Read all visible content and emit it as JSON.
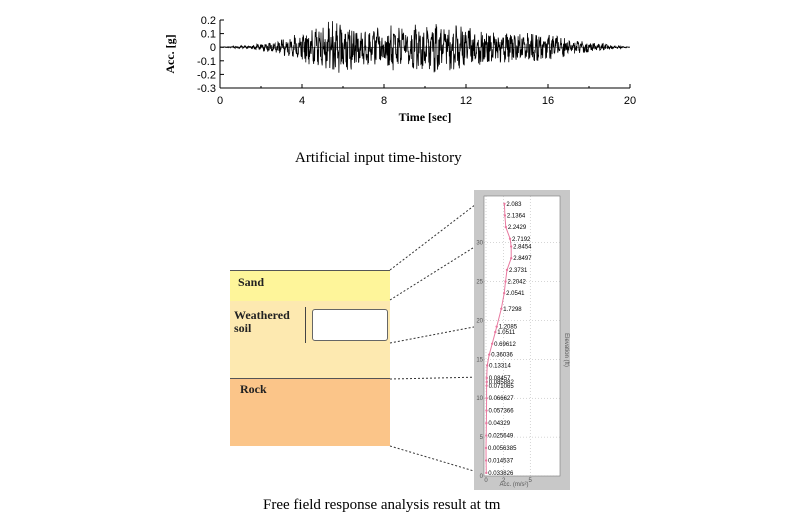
{
  "captions": {
    "top": "Artificial input time-history",
    "bottom": "Free field response analysis result at tm"
  },
  "chart_data": {
    "type": "line",
    "xlabel": "Time [sec]",
    "ylabel": "Acc. [g]",
    "xlim": [
      0,
      20
    ],
    "ylim": [
      -0.3,
      0.2
    ],
    "xticks": [
      "0",
      "4",
      "8",
      "12",
      "16",
      "20"
    ],
    "yticks": [
      "0.2",
      "0.1",
      "0",
      "-0.1",
      "-0.2",
      "-0.3"
    ],
    "series": [
      {
        "values": [
          {
            "t": 0.0,
            "a": 0.0
          },
          {
            "t": 1.0,
            "a": 0.01
          },
          {
            "t": 1.5,
            "a": -0.01
          },
          {
            "t": 2.0,
            "a": 0.03
          },
          {
            "t": 2.5,
            "a": -0.03
          },
          {
            "t": 3.0,
            "a": 0.06
          },
          {
            "t": 3.5,
            "a": -0.08
          },
          {
            "t": 4.0,
            "a": 0.1
          },
          {
            "t": 4.5,
            "a": -0.12
          },
          {
            "t": 5.0,
            "a": 0.15
          },
          {
            "t": 5.5,
            "a": -0.2
          },
          {
            "t": 6.0,
            "a": 0.16
          },
          {
            "t": 6.5,
            "a": -0.15
          },
          {
            "t": 7.0,
            "a": 0.12
          },
          {
            "t": 7.5,
            "a": -0.14
          },
          {
            "t": 8.0,
            "a": 0.14
          },
          {
            "t": 8.5,
            "a": -0.16
          },
          {
            "t": 9.0,
            "a": 0.13
          },
          {
            "t": 9.5,
            "a": -0.18
          },
          {
            "t": 10.0,
            "a": 0.15
          },
          {
            "t": 10.5,
            "a": -0.19
          },
          {
            "t": 11.0,
            "a": 0.17
          },
          {
            "t": 11.5,
            "a": -0.16
          },
          {
            "t": 12.0,
            "a": 0.14
          },
          {
            "t": 12.5,
            "a": -0.13
          },
          {
            "t": 13.0,
            "a": 0.12
          },
          {
            "t": 13.5,
            "a": -0.12
          },
          {
            "t": 14.0,
            "a": 0.11
          },
          {
            "t": 14.5,
            "a": -0.12
          },
          {
            "t": 15.0,
            "a": 0.1
          },
          {
            "t": 15.5,
            "a": -0.1
          },
          {
            "t": 16.0,
            "a": 0.09
          },
          {
            "t": 16.5,
            "a": -0.08
          },
          {
            "t": 17.0,
            "a": 0.06
          },
          {
            "t": 17.5,
            "a": -0.05
          },
          {
            "t": 18.0,
            "a": 0.04
          },
          {
            "t": 18.5,
            "a": -0.03
          },
          {
            "t": 19.0,
            "a": 0.02
          },
          {
            "t": 19.5,
            "a": -0.01
          },
          {
            "t": 20.0,
            "a": 0.0
          }
        ]
      }
    ]
  },
  "soil_profile": {
    "layers": [
      {
        "name": "Sand",
        "color": "#fdf08e"
      },
      {
        "name": "Weathered\nsoil",
        "color": "#fcdb94"
      },
      {
        "name": "Rock",
        "color": "#fbc589"
      }
    ],
    "fill_color": "#fde9b0",
    "rock_color": "#fbc589",
    "sand_color": "#fef59a"
  },
  "response_chart": {
    "xlabel": "Acc. (m/s²)",
    "ylabel": "Elevation (ft)",
    "yticks": [
      "30",
      "25",
      "20",
      "15",
      "10",
      "5",
      "0"
    ],
    "xticks": [
      "0",
      "2",
      "5"
    ],
    "line_color": "#e87aa0",
    "points": [
      {
        "elev": 35.0,
        "label": "2.083"
      },
      {
        "elev": 33.5,
        "label": "2.1364"
      },
      {
        "elev": 32.0,
        "label": "2.2429"
      },
      {
        "elev": 30.5,
        "label": "2.7192"
      },
      {
        "elev": 29.5,
        "label": "2.8454"
      },
      {
        "elev": 28.0,
        "label": "2.8497"
      },
      {
        "elev": 26.5,
        "label": "2.3731"
      },
      {
        "elev": 25.0,
        "label": "2.2042"
      },
      {
        "elev": 23.5,
        "label": "2.0541"
      },
      {
        "elev": 21.5,
        "label": "1.7298"
      },
      {
        "elev": 19.2,
        "label": "1.2085"
      },
      {
        "elev": 18.5,
        "label": "1.0511"
      },
      {
        "elev": 17.0,
        "label": "0.69612"
      },
      {
        "elev": 15.6,
        "label": "0.36036"
      },
      {
        "elev": 14.2,
        "label": "0.13314"
      },
      {
        "elev": 12.6,
        "label": "0.08457"
      },
      {
        "elev": 12.1,
        "label": "0.085882"
      },
      {
        "elev": 11.6,
        "label": "0.071065"
      },
      {
        "elev": 10.0,
        "label": "0.066627"
      },
      {
        "elev": 8.4,
        "label": "0.057366"
      },
      {
        "elev": 6.8,
        "label": "0.04329"
      },
      {
        "elev": 5.2,
        "label": "0.025649"
      },
      {
        "elev": 3.6,
        "label": "0.0056385"
      },
      {
        "elev": 2.0,
        "label": "0.014537"
      },
      {
        "elev": 0.4,
        "label": "0.033826"
      }
    ]
  }
}
